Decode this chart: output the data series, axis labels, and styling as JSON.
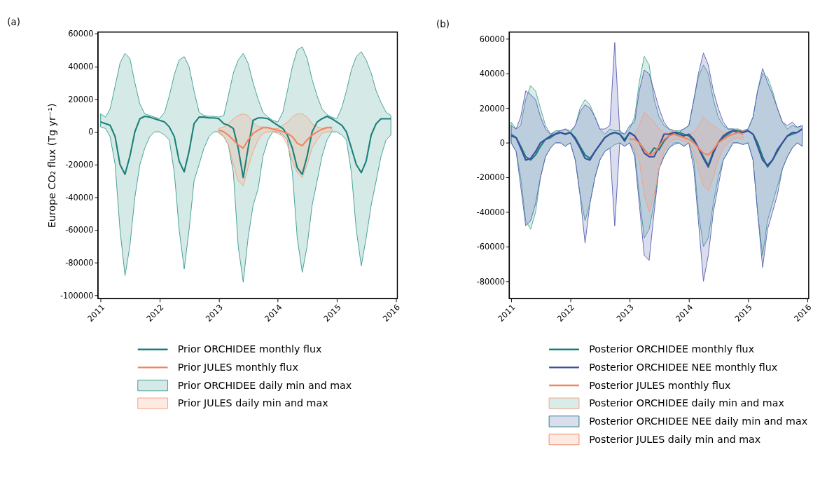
{
  "chart_data": [
    {
      "type": "line",
      "title": "(a)",
      "ylabel": "Europe CO₂ flux (Tg yr⁻¹)",
      "legend": "bottom",
      "grid": false,
      "xlim": [
        "2010-12-15",
        "2016-01-10"
      ],
      "xticks": [
        "2011",
        "2012",
        "2013",
        "2014",
        "2015",
        "2016"
      ],
      "ylim": [
        -102000,
        61000
      ],
      "yticks": [
        -100000,
        -80000,
        -60000,
        -40000,
        -20000,
        0,
        20000,
        40000,
        60000
      ],
      "x": [
        "2011-01",
        "2011-02",
        "2011-03",
        "2011-04",
        "2011-05",
        "2011-06",
        "2011-07",
        "2011-08",
        "2011-09",
        "2011-10",
        "2011-11",
        "2011-12",
        "2012-01",
        "2012-02",
        "2012-03",
        "2012-04",
        "2012-05",
        "2012-06",
        "2012-07",
        "2012-08",
        "2012-09",
        "2012-10",
        "2012-11",
        "2012-12",
        "2013-01",
        "2013-02",
        "2013-03",
        "2013-04",
        "2013-05",
        "2013-06",
        "2013-07",
        "2013-08",
        "2013-09",
        "2013-10",
        "2013-11",
        "2013-12",
        "2014-01",
        "2014-02",
        "2014-03",
        "2014-04",
        "2014-05",
        "2014-06",
        "2014-07",
        "2014-08",
        "2014-09",
        "2014-10",
        "2014-11",
        "2014-12",
        "2015-01",
        "2015-02",
        "2015-03",
        "2015-04",
        "2015-05",
        "2015-06",
        "2015-07",
        "2015-08",
        "2015-09",
        "2015-10",
        "2015-11",
        "2015-12"
      ],
      "series": [
        {
          "name": "Prior ORCHIDEE monthly flux",
          "type": "line",
          "color": "#1b7f79",
          "values": [
            6000,
            5000,
            4000,
            -3000,
            -20000,
            -26000,
            -15000,
            0,
            8000,
            9500,
            9000,
            8000,
            7000,
            6000,
            3000,
            -3000,
            -18000,
            -24500,
            -12000,
            5000,
            9000,
            9000,
            8500,
            8500,
            8000,
            5000,
            4000,
            2000,
            -10000,
            -28000,
            -10000,
            7000,
            8500,
            8500,
            8000,
            6000,
            4000,
            2000,
            -2000,
            -10000,
            -22000,
            -26000,
            -15000,
            0,
            6000,
            8000,
            9500,
            8000,
            6000,
            4000,
            0,
            -10000,
            -20000,
            -25000,
            -18000,
            -2000,
            5000,
            8000,
            8000,
            8000
          ]
        },
        {
          "name": "Prior JULES monthly flux",
          "type": "line",
          "color": "#f4845f",
          "x": [
            "2013-01",
            "2013-02",
            "2013-03",
            "2013-04",
            "2013-05",
            "2013-06",
            "2013-07",
            "2013-08",
            "2013-09",
            "2013-10",
            "2013-11",
            "2013-12",
            "2014-01",
            "2014-02",
            "2014-03",
            "2014-04",
            "2014-05",
            "2014-06",
            "2014-07",
            "2014-08",
            "2014-09",
            "2014-10",
            "2014-11",
            "2014-12"
          ],
          "values": [
            1000,
            0,
            -2000,
            -5000,
            -8000,
            -10000,
            -5000,
            -1000,
            1000,
            2500,
            2500,
            1500,
            1000,
            0,
            -1000,
            -3000,
            -7000,
            -8500,
            -5000,
            -2000,
            0,
            1500,
            2500,
            2500
          ]
        },
        {
          "name": "Prior ORCHIDEE daily min and max",
          "color": "#3f9e93",
          "values": [
            null,
            null,
            null,
            null,
            null,
            null,
            null,
            null,
            null,
            null,
            null,
            null,
            null,
            null,
            null,
            null,
            null,
            null,
            null,
            null,
            null,
            null,
            null,
            null,
            null,
            null,
            null,
            null,
            null,
            null,
            null,
            null,
            null,
            null,
            null,
            null,
            null,
            null,
            null,
            null,
            null,
            null,
            null,
            null,
            null,
            null,
            null,
            null,
            null,
            null,
            null,
            null,
            null,
            null,
            null,
            null,
            null,
            null,
            null,
            null
          ],
          "upper": [
            11000,
            9000,
            14000,
            28000,
            42000,
            48000,
            45000,
            30000,
            17000,
            11000,
            10000,
            9000,
            8000,
            12000,
            22000,
            35000,
            44000,
            46000,
            40000,
            25000,
            12000,
            10000,
            9500,
            9500,
            9000,
            10000,
            22000,
            36000,
            44000,
            48000,
            42000,
            30000,
            20000,
            12000,
            9000,
            7000,
            6000,
            12000,
            25000,
            40000,
            50000,
            52000,
            45000,
            32000,
            22000,
            14000,
            10500,
            9000,
            8000,
            15000,
            25000,
            38000,
            46000,
            49000,
            44000,
            36000,
            25000,
            18000,
            12000,
            10000
          ],
          "lower": [
            3000,
            2000,
            -3000,
            -20000,
            -60000,
            -88000,
            -70000,
            -40000,
            -20000,
            -10000,
            -3000,
            0,
            0,
            -2000,
            -5000,
            -25000,
            -60000,
            -84000,
            -60000,
            -30000,
            -20000,
            -10000,
            -3000,
            0,
            0,
            -3000,
            -8000,
            -25000,
            -70000,
            -92000,
            -65000,
            -45000,
            -35000,
            -15000,
            -5000,
            0,
            0,
            -2000,
            -5000,
            -25000,
            -65000,
            -86000,
            -70000,
            -45000,
            -30000,
            -15000,
            -5000,
            0,
            0,
            -2000,
            -5000,
            -25000,
            -60000,
            -82000,
            -65000,
            -45000,
            -30000,
            -15000,
            -5000,
            -2000
          ]
        },
        {
          "name": "Prior JULES daily min and max",
          "color": "#f7a07e",
          "x": [
            "2013-01",
            "2013-02",
            "2013-03",
            "2013-04",
            "2013-05",
            "2013-06",
            "2013-07",
            "2013-08",
            "2013-09",
            "2013-10",
            "2013-11",
            "2013-12",
            "2014-01",
            "2014-02",
            "2014-03",
            "2014-04",
            "2014-05",
            "2014-06",
            "2014-07",
            "2014-08",
            "2014-09",
            "2014-10",
            "2014-11",
            "2014-12"
          ],
          "values": [
            null,
            null,
            null,
            null,
            null,
            null,
            null,
            null,
            null,
            null,
            null,
            null,
            null,
            null,
            null,
            null,
            null,
            null,
            null,
            null,
            null,
            null,
            null,
            null
          ],
          "upper": [
            2000,
            3000,
            5000,
            8000,
            10000,
            11000,
            10000,
            6000,
            3000,
            3000,
            3000,
            2000,
            2000,
            4000,
            6000,
            9000,
            11000,
            11000,
            9000,
            5000,
            3000,
            2000,
            3000,
            3000
          ],
          "lower": [
            -1000,
            -3000,
            -8000,
            -20000,
            -30000,
            -33000,
            -22000,
            -12000,
            -5000,
            -1000,
            0,
            0,
            -1000,
            -3000,
            -8000,
            -18000,
            -25000,
            -28000,
            -20000,
            -10000,
            -5000,
            -1000,
            0,
            0
          ]
        }
      ]
    },
    {
      "type": "line",
      "title": "(b)",
      "legend": "bottom",
      "grid": false,
      "xlim": [
        "2010-12-20",
        "2016-01-10"
      ],
      "xticks": [
        "2011",
        "2012",
        "2013",
        "2014",
        "2015",
        "2016"
      ],
      "ylim": [
        -90000,
        64000
      ],
      "yticks": [
        -80000,
        -60000,
        -40000,
        -20000,
        0,
        20000,
        40000,
        60000
      ],
      "x": [
        "2011-01",
        "2011-02",
        "2011-03",
        "2011-04",
        "2011-05",
        "2011-06",
        "2011-07",
        "2011-08",
        "2011-09",
        "2011-10",
        "2011-11",
        "2011-12",
        "2012-01",
        "2012-02",
        "2012-03",
        "2012-04",
        "2012-05",
        "2012-06",
        "2012-07",
        "2012-08",
        "2012-09",
        "2012-10",
        "2012-11",
        "2012-12",
        "2013-01",
        "2013-02",
        "2013-03",
        "2013-04",
        "2013-05",
        "2013-06",
        "2013-07",
        "2013-08",
        "2013-09",
        "2013-10",
        "2013-11",
        "2013-12",
        "2014-01",
        "2014-02",
        "2014-03",
        "2014-04",
        "2014-05",
        "2014-06",
        "2014-07",
        "2014-08",
        "2014-09",
        "2014-10",
        "2014-11",
        "2014-12",
        "2015-01",
        "2015-02",
        "2015-03",
        "2015-04",
        "2015-05",
        "2015-06",
        "2015-07",
        "2015-08",
        "2015-09",
        "2015-10",
        "2015-11",
        "2015-12"
      ],
      "series": [
        {
          "name": "Posterior ORCHIDEE monthly flux",
          "type": "line",
          "color": "#1b7f79",
          "values": [
            5000,
            3000,
            -2000,
            -8000,
            -10000,
            -7000,
            -2000,
            2000,
            3000,
            5000,
            6000,
            5000,
            6000,
            3000,
            -2000,
            -7000,
            -9000,
            -5000,
            -1000,
            3000,
            5000,
            6000,
            5000,
            2000,
            6000,
            4000,
            0,
            -4000,
            -7000,
            -3000,
            -4000,
            1000,
            4000,
            6000,
            6000,
            5000,
            4000,
            1000,
            -3000,
            -8000,
            -13000,
            -5000,
            0,
            3000,
            5000,
            7000,
            7000,
            6000,
            7000,
            5000,
            0,
            -8000,
            -14000,
            -10000,
            -5000,
            0,
            4000,
            5000,
            6000,
            8000
          ]
        },
        {
          "name": "Posterior ORCHIDEE NEE monthly flux",
          "type": "line",
          "color": "#3a4f9f",
          "values": [
            4000,
            3000,
            -3000,
            -10000,
            -9000,
            -5000,
            0,
            2000,
            4000,
            5000,
            6000,
            5000,
            6000,
            2000,
            -3000,
            -9000,
            -10000,
            -5000,
            -1000,
            3000,
            5000,
            6000,
            5000,
            1000,
            6000,
            4000,
            0,
            -6000,
            -8000,
            -8000,
            -2000,
            5000,
            5000,
            6000,
            5000,
            4000,
            5000,
            2000,
            -3000,
            -9000,
            -14000,
            -6000,
            0,
            4000,
            6000,
            7000,
            6000,
            6000,
            7000,
            5000,
            -2000,
            -10000,
            -13000,
            -10000,
            -4000,
            0,
            4000,
            6000,
            6000,
            8000
          ]
        },
        {
          "name": "Posterior JULES monthly flux",
          "type": "line",
          "color": "#f4845f",
          "x": [
            "2013-01",
            "2013-02",
            "2013-03",
            "2013-04",
            "2013-05",
            "2013-06",
            "2013-07",
            "2013-08",
            "2013-09",
            "2013-10",
            "2013-11",
            "2013-12",
            "2014-01",
            "2014-02",
            "2014-03",
            "2014-04",
            "2014-05",
            "2014-06",
            "2014-07",
            "2014-08",
            "2014-09",
            "2014-10",
            "2014-11",
            "2014-12"
          ],
          "values": [
            2000,
            2000,
            0,
            -4000,
            -7000,
            -6000,
            -2000,
            2000,
            4000,
            5000,
            4000,
            3000,
            2000,
            0,
            -3000,
            -6000,
            -7000,
            -4000,
            0,
            2000,
            4000,
            5000,
            6000,
            5000
          ]
        },
        {
          "name": "Posterior ORCHIDEE daily min and max",
          "color": "#4fa898",
          "values": [
            null,
            null,
            null,
            null,
            null,
            null,
            null,
            null,
            null,
            null,
            null,
            null,
            null,
            null,
            null,
            null,
            null,
            null,
            null,
            null,
            null,
            null,
            null,
            null,
            null,
            null,
            null,
            null,
            null,
            null,
            null,
            null,
            null,
            null,
            null,
            null,
            null,
            null,
            null,
            null,
            null,
            null,
            null,
            null,
            null,
            null,
            null,
            null,
            null,
            null,
            null,
            null,
            null,
            null,
            null,
            null,
            null,
            null,
            null,
            null
          ],
          "upper": [
            12000,
            8000,
            10000,
            25000,
            33000,
            30000,
            20000,
            10000,
            5000,
            7000,
            7000,
            8000,
            7000,
            10000,
            20000,
            25000,
            22000,
            15000,
            8000,
            5000,
            8000,
            7000,
            7000,
            5000,
            8000,
            15000,
            35000,
            50000,
            45000,
            25000,
            15000,
            10000,
            8000,
            7000,
            7000,
            8000,
            10000,
            25000,
            38000,
            45000,
            40000,
            25000,
            15000,
            10000,
            8000,
            8000,
            8000,
            7000,
            8000,
            15000,
            30000,
            40000,
            38000,
            30000,
            20000,
            12000,
            8000,
            10000,
            9000,
            10000
          ],
          "lower": [
            0,
            -5000,
            -20000,
            -45000,
            -50000,
            -40000,
            -20000,
            -8000,
            -3000,
            0,
            0,
            -2000,
            0,
            -10000,
            -30000,
            -45000,
            -35000,
            -20000,
            -10000,
            -5000,
            -3000,
            -1000,
            0,
            -2000,
            0,
            -5000,
            -30000,
            -55000,
            -50000,
            -35000,
            -15000,
            -8000,
            -3000,
            0,
            0,
            -2000,
            0,
            -10000,
            -40000,
            -60000,
            -55000,
            -35000,
            -20000,
            -10000,
            -5000,
            0,
            0,
            -1000,
            0,
            -10000,
            -40000,
            -65000,
            -45000,
            -35000,
            -25000,
            -15000,
            -8000,
            -3000,
            0,
            -2000
          ]
        },
        {
          "name": "Posterior ORCHIDEE NEE daily min and max",
          "color": "#5b64b4",
          "values": [
            null,
            null,
            null,
            null,
            null,
            null,
            null,
            null,
            null,
            null,
            null,
            null,
            null,
            null,
            null,
            null,
            null,
            null,
            null,
            null,
            null,
            null,
            null,
            null,
            null,
            null,
            null,
            null,
            null,
            null,
            null,
            null,
            null,
            null,
            null,
            null,
            null,
            null,
            null,
            null,
            null,
            null,
            null,
            null,
            null,
            null,
            null,
            null,
            null,
            null,
            null,
            null,
            null,
            null,
            null,
            null,
            null,
            null,
            null,
            null
          ],
          "upper": [
            10000,
            8000,
            15000,
            30000,
            28000,
            25000,
            15000,
            8000,
            5000,
            6000,
            7000,
            8000,
            6000,
            10000,
            18000,
            22000,
            20000,
            15000,
            8000,
            8000,
            10000,
            58000,
            6000,
            5000,
            10000,
            12000,
            30000,
            42000,
            40000,
            30000,
            20000,
            12000,
            8000,
            7000,
            6000,
            8000,
            10000,
            25000,
            40000,
            52000,
            45000,
            30000,
            20000,
            12000,
            8000,
            8000,
            7000,
            7000,
            8000,
            15000,
            30000,
            43000,
            35000,
            28000,
            20000,
            12000,
            10000,
            12000,
            9000,
            10000
          ],
          "lower": [
            0,
            -5000,
            -25000,
            -48000,
            -45000,
            -35000,
            -20000,
            -8000,
            -3000,
            0,
            0,
            -2000,
            0,
            -10000,
            -30000,
            -58000,
            -35000,
            -20000,
            -10000,
            -5000,
            -3000,
            -48000,
            0,
            -2000,
            0,
            -8000,
            -35000,
            -65000,
            -68000,
            -40000,
            -15000,
            -8000,
            -3000,
            -1000,
            0,
            -2000,
            0,
            -15000,
            -45000,
            -80000,
            -65000,
            -40000,
            -25000,
            -10000,
            -5000,
            0,
            0,
            -1000,
            0,
            -10000,
            -40000,
            -72000,
            -50000,
            -40000,
            -30000,
            -15000,
            -8000,
            -3000,
            0,
            -2000
          ]
        },
        {
          "name": "Posterior JULES daily min and max",
          "color": "#f7a07e",
          "x": [
            "2013-01",
            "2013-02",
            "2013-03",
            "2013-04",
            "2013-05",
            "2013-06",
            "2013-07",
            "2013-08",
            "2013-09",
            "2013-10",
            "2013-11",
            "2013-12",
            "2014-01",
            "2014-02",
            "2014-03",
            "2014-04",
            "2014-05",
            "2014-06",
            "2014-07",
            "2014-08",
            "2014-09",
            "2014-10",
            "2014-11",
            "2014-12"
          ],
          "values": [
            null,
            null,
            null,
            null,
            null,
            null,
            null,
            null,
            null,
            null,
            null,
            null,
            null,
            null,
            null,
            null,
            null,
            null,
            null,
            null,
            null,
            null,
            null,
            null
          ],
          "upper": [
            4000,
            5000,
            10000,
            18000,
            15000,
            12000,
            8000,
            6000,
            6000,
            7000,
            6000,
            5000,
            5000,
            6000,
            10000,
            15000,
            12000,
            10000,
            8000,
            6000,
            6000,
            7000,
            8000,
            7000
          ],
          "lower": [
            0,
            -2000,
            -10000,
            -30000,
            -40000,
            -30000,
            -15000,
            -5000,
            0,
            2000,
            2000,
            1000,
            0,
            -5000,
            -15000,
            -25000,
            -28000,
            -20000,
            -10000,
            -3000,
            0,
            2000,
            3000,
            2000
          ]
        }
      ]
    }
  ]
}
